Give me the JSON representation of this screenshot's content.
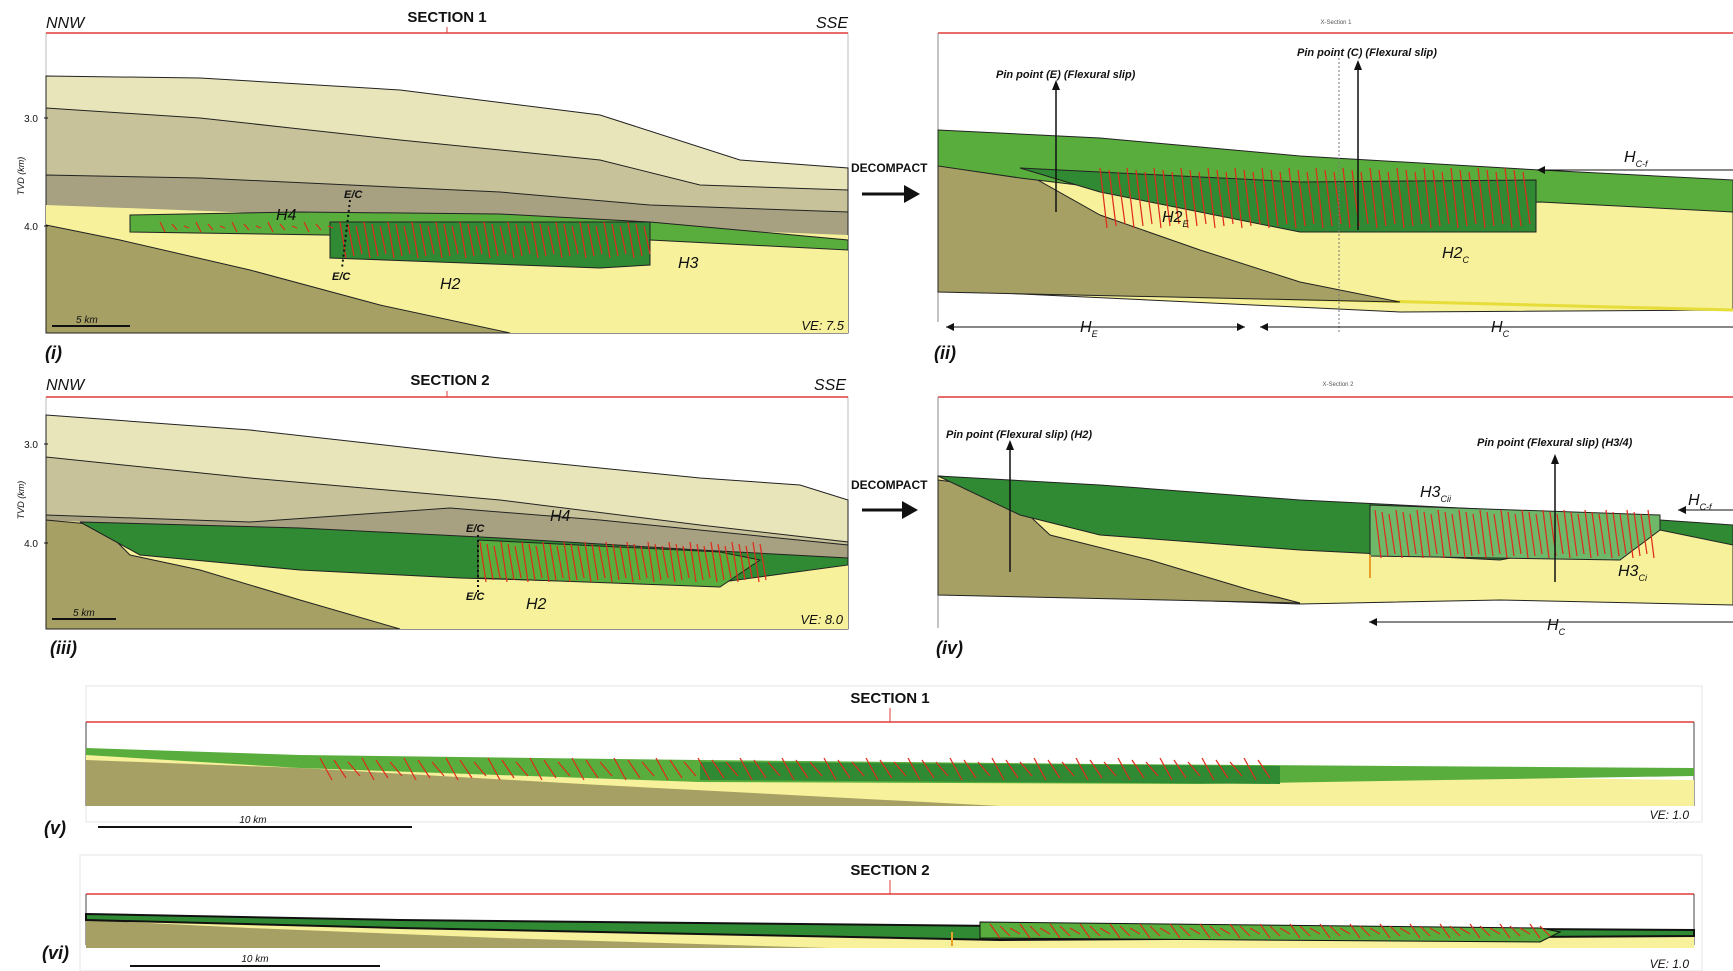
{
  "colors": {
    "frame": "#e23b3b",
    "layer_pale": "#e9e5bb",
    "layer_tan": "#c8c29a",
    "layer_grey": "#a7a181",
    "layer_dark": "#8d8a6e",
    "basement": "#a6a064",
    "yellow": "#f6f19a",
    "green_light": "#59ad3c",
    "green_dark": "#2f8a33",
    "green_pale": "#6fb86a",
    "fault": "#e02a1a"
  },
  "panels": {
    "p1": {
      "title": "SECTION 1",
      "left_dir": "NNW",
      "right_dir": "SSE",
      "y_axis_label": "TVD (km)",
      "y_ticks": [
        "3.0",
        "4.0"
      ],
      "scale": "5 km",
      "ve": "VE: 7.5",
      "tag": "(i)",
      "labels": {
        "h4": "H4",
        "h2": "H2",
        "h3": "H3",
        "ec_top": "E/C",
        "ec_bottom": "E/C"
      }
    },
    "p2": {
      "caption": "X-Section 1",
      "tag": "(ii)",
      "pin_e": "Pin point (E) (Flexural slip)",
      "pin_c": "Pin point (C) (Flexural slip)",
      "h2e": {
        "base": "H2",
        "sub": "E"
      },
      "h2c": {
        "base": "H2",
        "sub": "C"
      },
      "hcf": {
        "base": "H",
        "sub": "C-f"
      },
      "he": {
        "base": "H",
        "sub": "E"
      },
      "hc": {
        "base": "H",
        "sub": "C"
      }
    },
    "p3": {
      "title": "SECTION 2",
      "left_dir": "NNW",
      "right_dir": "SSE",
      "y_axis_label": "TVD (km)",
      "y_ticks": [
        "3.0",
        "4.0"
      ],
      "scale": "5 km",
      "ve": "VE: 8.0",
      "tag": "(iii)",
      "labels": {
        "h4": "H4",
        "h2": "H2",
        "ec_top": "E/C",
        "ec_bottom": "E/C"
      }
    },
    "p4": {
      "caption": "X-Section 2",
      "tag": "(iv)",
      "pin_h2": "Pin point (Flexural slip) (H2)",
      "pin_h34": "Pin point (Flexural slip) (H3/4)",
      "h3cii": {
        "base": "H3",
        "sub": "Cii"
      },
      "h3ci": {
        "base": "H3",
        "sub": "Ci"
      },
      "hcf": {
        "base": "H",
        "sub": "C-f"
      },
      "hc": {
        "base": "H",
        "sub": "C"
      }
    },
    "p5": {
      "title": "SECTION 1",
      "scale": "10 km",
      "ve": "VE: 1.0",
      "tag": "(v)"
    },
    "p6": {
      "title": "SECTION 2",
      "scale": "10 km",
      "ve": "VE: 1.0",
      "tag": "(vi)"
    }
  },
  "arrows": {
    "decompact_1": "DECOMPACT",
    "decompact_2": "DECOMPACT"
  }
}
